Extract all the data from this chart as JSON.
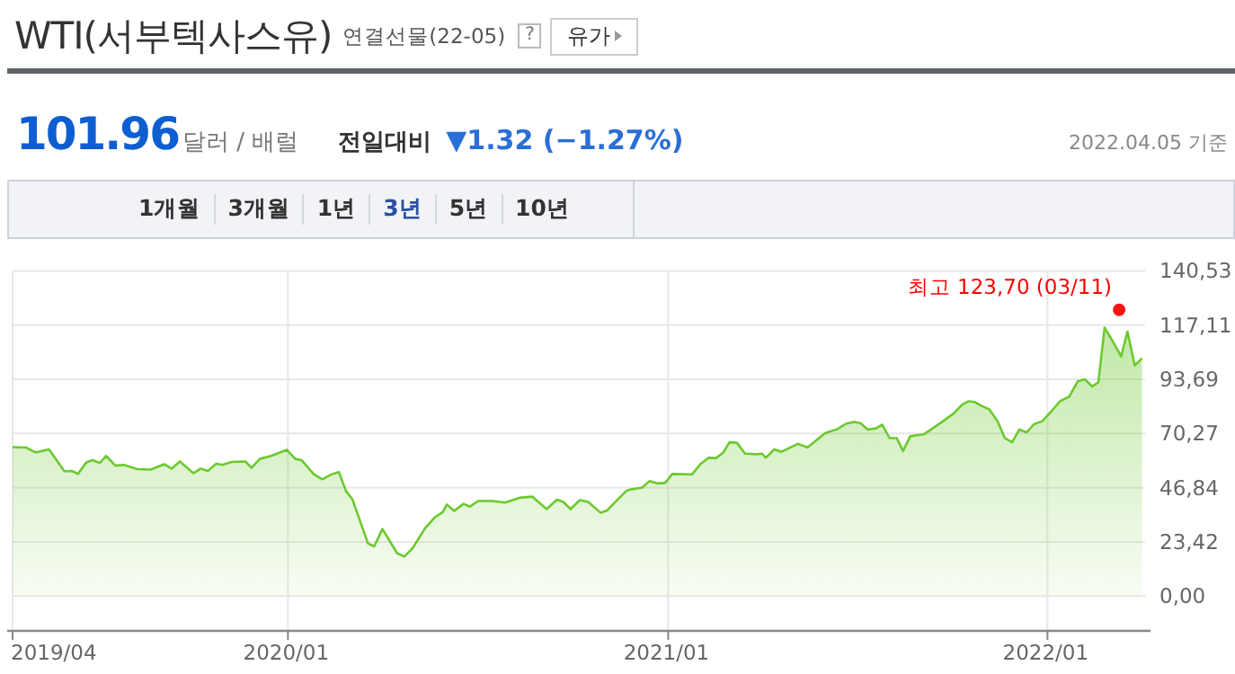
{
  "chart_data": {
    "type": "area",
    "title": "WTI(서부텍사스유)",
    "subtitle": "연결선물(22-05)",
    "annotations": [
      "?",
      "유가",
      "101.96",
      "달러 / 배럴",
      "전일대비",
      "▼1.32 (−1.27%)",
      "2022.04.05 기준",
      "1개월",
      "3개월",
      "1년",
      "3년",
      "5년",
      "10년",
      {
        "text": "최고 123,70 (03/11)",
        "x": "2022-03-11",
        "y": 123.7
      }
    ],
    "x": [
      "2019-04-11",
      "2019-04-24",
      "2019-05-03",
      "2019-05-16",
      "2019-05-31",
      "2019-06-07",
      "2019-06-13",
      "2019-06-21",
      "2019-06-27",
      "2019-07-04",
      "2019-07-10",
      "2019-07-19",
      "2019-07-27",
      "2019-08-09",
      "2019-08-22",
      "2019-09-04",
      "2019-09-11",
      "2019-09-19",
      "2019-10-02",
      "2019-10-09",
      "2019-10-16",
      "2019-10-24",
      "2019-10-30",
      "2019-11-08",
      "2019-11-21",
      "2019-11-27",
      "2019-12-05",
      "2019-12-16",
      "2019-12-31",
      "2020-01-08",
      "2020-01-14",
      "2020-01-26",
      "2020-02-03",
      "2020-02-12",
      "2020-02-19",
      "2020-02-26",
      "2020-03-03",
      "2020-03-18",
      "2020-03-24",
      "2020-04-01",
      "2020-04-15",
      "2020-04-22",
      "2020-04-30",
      "2020-05-12",
      "2020-05-21",
      "2020-05-29",
      "2020-06-02",
      "2020-06-09",
      "2020-06-18",
      "2020-06-24",
      "2020-07-02",
      "2020-07-16",
      "2020-07-28",
      "2020-08-11",
      "2020-08-23",
      "2020-09-06",
      "2020-09-16",
      "2020-09-22",
      "2020-09-29",
      "2020-10-08",
      "2020-10-16",
      "2020-10-28",
      "2020-11-03",
      "2020-11-11",
      "2020-11-22",
      "2020-11-26",
      "2020-12-07",
      "2020-12-14",
      "2020-12-22",
      "2020-12-29",
      "2021-01-05",
      "2021-01-24",
      "2021-02-01",
      "2021-02-09",
      "2021-02-16",
      "2021-02-23",
      "2021-03-01",
      "2021-03-08",
      "2021-03-16",
      "2021-03-27",
      "2021-04-01",
      "2021-04-05",
      "2021-04-13",
      "2021-04-20",
      "2021-05-06",
      "2021-05-15",
      "2021-06-01",
      "2021-06-13",
      "2021-06-21",
      "2021-06-29",
      "2021-07-05",
      "2021-07-12",
      "2021-07-20",
      "2021-07-26",
      "2021-08-02",
      "2021-08-09",
      "2021-08-15",
      "2021-08-22",
      "2021-09-04",
      "2021-09-21",
      "2021-10-03",
      "2021-10-11",
      "2021-10-17",
      "2021-10-23",
      "2021-10-30",
      "2021-11-06",
      "2021-11-14",
      "2021-11-21",
      "2021-11-28",
      "2021-12-05",
      "2021-12-12",
      "2021-12-19",
      "2021-12-27",
      "2022-01-06",
      "2022-01-13",
      "2022-01-22",
      "2022-01-30",
      "2022-02-06",
      "2022-02-13",
      "2022-02-19",
      "2022-02-25",
      "2022-03-05",
      "2022-03-13",
      "2022-03-19",
      "2022-03-26",
      "2022-04-02"
    ],
    "series": [
      {
        "color": "#6cc92e",
        "values": [
          64.4,
          64.2,
          62.1,
          63.4,
          53.9,
          54.1,
          52.8,
          57.8,
          58.8,
          57.5,
          60.6,
          56.4,
          56.7,
          54.9,
          54.7,
          57.0,
          55.1,
          58.2,
          53.1,
          55.1,
          54.1,
          57.2,
          56.7,
          58.0,
          58.2,
          55.4,
          59.3,
          60.6,
          63.2,
          59.3,
          58.8,
          52.6,
          50.5,
          52.6,
          53.6,
          45.3,
          41.9,
          22.8,
          21.5,
          29.0,
          18.6,
          17.1,
          20.7,
          29.3,
          33.9,
          36.3,
          39.6,
          36.8,
          39.9,
          38.6,
          41.1,
          41.1,
          40.4,
          42.5,
          43.0,
          37.6,
          41.7,
          40.7,
          37.6,
          41.5,
          40.7,
          36.0,
          37.0,
          40.7,
          45.6,
          46.1,
          46.9,
          49.7,
          48.7,
          48.9,
          52.8,
          52.6,
          57.0,
          59.8,
          59.6,
          62.1,
          66.5,
          66.3,
          61.6,
          61.3,
          61.6,
          59.8,
          63.4,
          62.4,
          65.8,
          64.2,
          70.4,
          72.2,
          74.5,
          75.3,
          74.8,
          72.0,
          72.5,
          74.1,
          68.3,
          68.3,
          62.7,
          69.1,
          69.9,
          75.1,
          79.0,
          82.8,
          84.2,
          83.9,
          82.1,
          80.7,
          75.6,
          68.3,
          66.5,
          72.0,
          70.7,
          74.3,
          75.6,
          80.5,
          84.2,
          86.2,
          92.7,
          93.7,
          90.6,
          92.4,
          116.0,
          110.0,
          103.6,
          114.4,
          99.7,
          102.8
        ]
      }
    ],
    "xlim": [
      "2019-04-11",
      "2022-04-05"
    ],
    "xticks": [
      {
        "value": "2019-04-11",
        "label": "2019/04"
      },
      {
        "value": "2020-01-01",
        "label": "2020/01"
      },
      {
        "value": "2021-01-01",
        "label": "2021/01"
      },
      {
        "value": "2022-01-01",
        "label": "2022/01"
      }
    ],
    "ylim": [
      -15,
      140.53
    ],
    "yticks": [
      {
        "value": 0,
        "label": "0,00"
      },
      {
        "value": 23.42,
        "label": "23,42"
      },
      {
        "value": 46.84,
        "label": "46,84"
      },
      {
        "value": 70.27,
        "label": "70,27"
      },
      {
        "value": 93.69,
        "label": "93,69"
      },
      {
        "value": 117.11,
        "label": "117,11"
      },
      {
        "value": 140.53,
        "label": "140,53"
      }
    ],
    "grid": true
  }
}
